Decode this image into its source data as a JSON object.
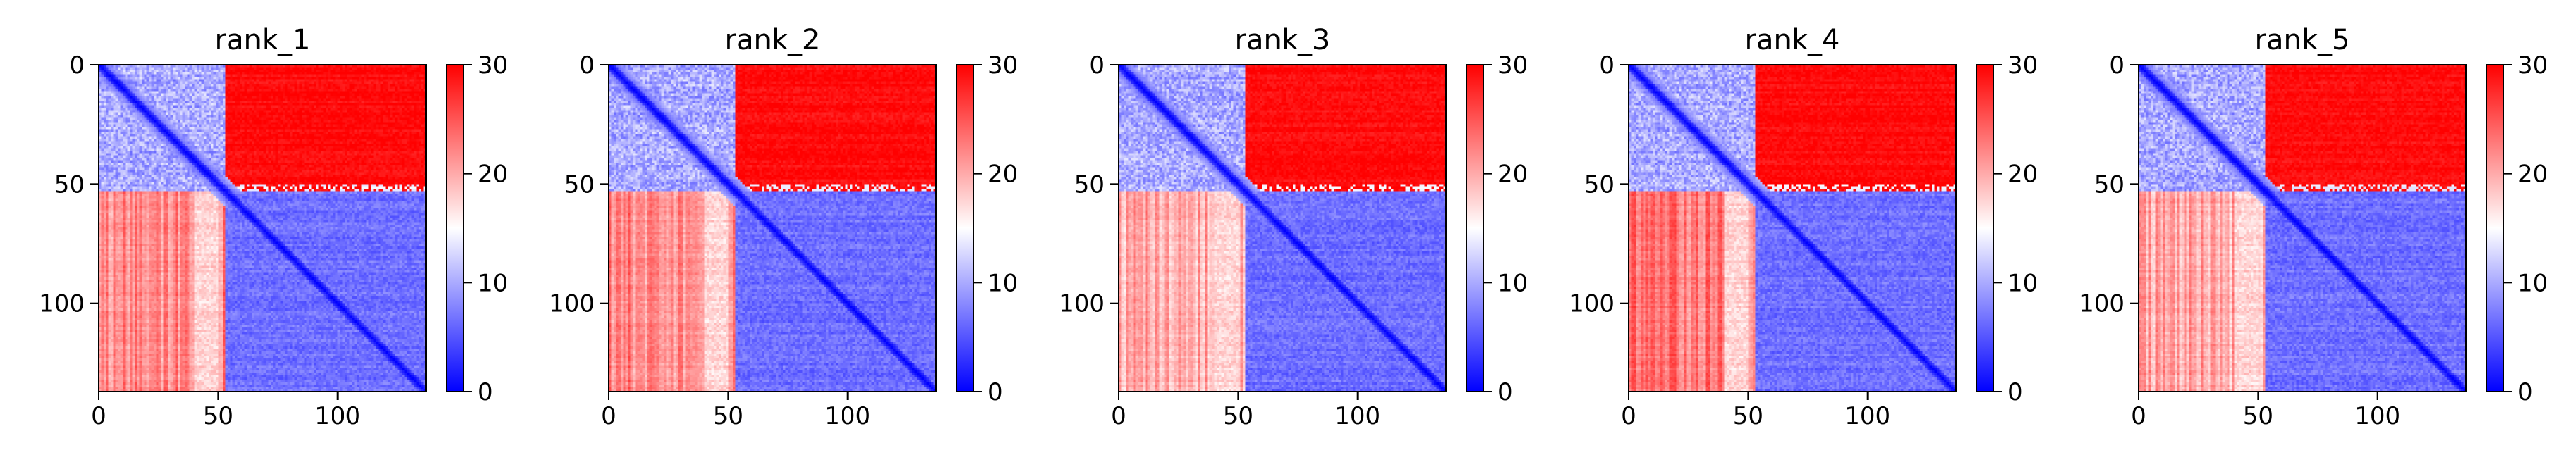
{
  "colorbar": {
    "min": 0,
    "max": 30,
    "ticks": [
      0,
      10,
      20,
      30
    ],
    "colormap": "bwr",
    "color_low": "#0000ff",
    "color_mid": "#ffffff",
    "color_high": "#ff0000"
  },
  "chart_data": [
    {
      "type": "heatmap",
      "title": "rank_1",
      "xlim": [
        0,
        137
      ],
      "ylim": [
        137,
        0
      ],
      "xticks": [
        0,
        50,
        100
      ],
      "yticks": [
        0,
        50,
        100
      ],
      "matrix_size": 137,
      "domain_boundary": 53,
      "value_range": [
        0,
        30
      ],
      "blocks": {
        "within_domain_1": 7,
        "within_domain_2": 5,
        "between_domains": 29,
        "lower_between_domains": 22
      },
      "pale_band": [
        40,
        50
      ]
    },
    {
      "type": "heatmap",
      "title": "rank_2",
      "xlim": [
        0,
        137
      ],
      "ylim": [
        137,
        0
      ],
      "xticks": [
        0,
        50,
        100
      ],
      "yticks": [
        0,
        50,
        100
      ],
      "matrix_size": 137,
      "domain_boundary": 53,
      "value_range": [
        0,
        30
      ],
      "blocks": {
        "within_domain_1": 7,
        "within_domain_2": 5,
        "between_domains": 29,
        "lower_between_domains": 22
      },
      "pale_band": [
        40,
        50
      ]
    },
    {
      "type": "heatmap",
      "title": "rank_3",
      "xlim": [
        0,
        137
      ],
      "ylim": [
        137,
        0
      ],
      "xticks": [
        0,
        50,
        100
      ],
      "yticks": [
        0,
        50,
        100
      ],
      "matrix_size": 137,
      "domain_boundary": 53,
      "value_range": [
        0,
        30
      ],
      "blocks": {
        "within_domain_1": 7,
        "within_domain_2": 5,
        "between_domains": 29,
        "lower_between_domains": 20
      },
      "pale_band": [
        40,
        50
      ]
    },
    {
      "type": "heatmap",
      "title": "rank_4",
      "xlim": [
        0,
        137
      ],
      "ylim": [
        137,
        0
      ],
      "xticks": [
        0,
        50,
        100
      ],
      "yticks": [
        0,
        50,
        100
      ],
      "matrix_size": 137,
      "domain_boundary": 53,
      "value_range": [
        0,
        30
      ],
      "blocks": {
        "within_domain_1": 7,
        "within_domain_2": 5,
        "between_domains": 29,
        "lower_between_domains": 23
      },
      "pale_band": [
        40,
        50
      ]
    },
    {
      "type": "heatmap",
      "title": "rank_5",
      "xlim": [
        0,
        137
      ],
      "ylim": [
        137,
        0
      ],
      "xticks": [
        0,
        50,
        100
      ],
      "yticks": [
        0,
        50,
        100
      ],
      "matrix_size": 137,
      "domain_boundary": 53,
      "value_range": [
        0,
        30
      ],
      "blocks": {
        "within_domain_1": 7,
        "within_domain_2": 5,
        "between_domains": 29,
        "lower_between_domains": 20
      },
      "pale_band": [
        40,
        50
      ]
    }
  ]
}
